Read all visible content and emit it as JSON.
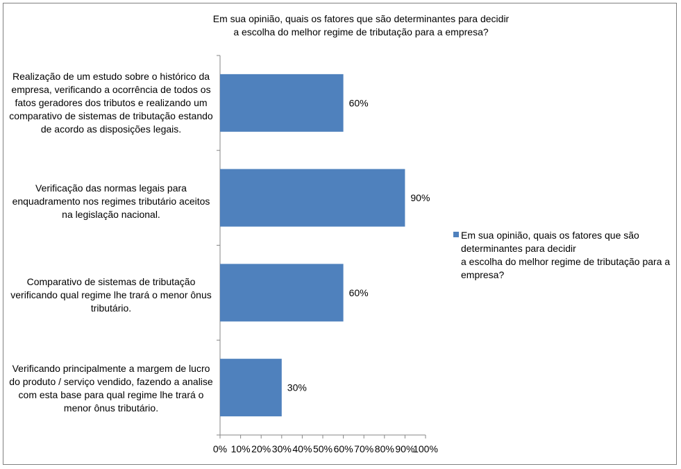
{
  "chart_data": {
    "type": "bar",
    "orientation": "horizontal",
    "title": "Em sua opinião, quais os fatores que são determinantes para decidir\na escolha do melhor regime de tributação para a empresa?",
    "categories": [
      "Realização de um estudo sobre o histórico da empresa, verificando a ocorrência de todos os fatos geradores dos tributos e realizando um comparativo de sistemas de tributação estando de acordo as disposições legais.",
      "Verificação das normas legais para enquadramento nos regimes tributário aceitos na legislação nacional.",
      "Comparativo de sistemas de tributação verificando qual regime lhe trará o menor ônus tributário.",
      "Verificando principalmente a margem de lucro do produto / serviço vendido, fazendo a analise com esta base para qual regime lhe trará o menor ônus tributário."
    ],
    "series": [
      {
        "name": "Em sua opinião, quais os fatores que são determinantes para decidir\n a escolha do melhor regime de tributação para a empresa?",
        "values": [
          60,
          90,
          60,
          30
        ],
        "color": "#4f81bd"
      }
    ],
    "data_labels": [
      "60%",
      "90%",
      "60%",
      "30%"
    ],
    "x_ticks": [
      "0%",
      "10%",
      "20%",
      "30%",
      "40%",
      "50%",
      "60%",
      "70%",
      "80%",
      "90%",
      "100%"
    ],
    "xlim": [
      0,
      100
    ],
    "grid": false,
    "legend_position": "right"
  }
}
